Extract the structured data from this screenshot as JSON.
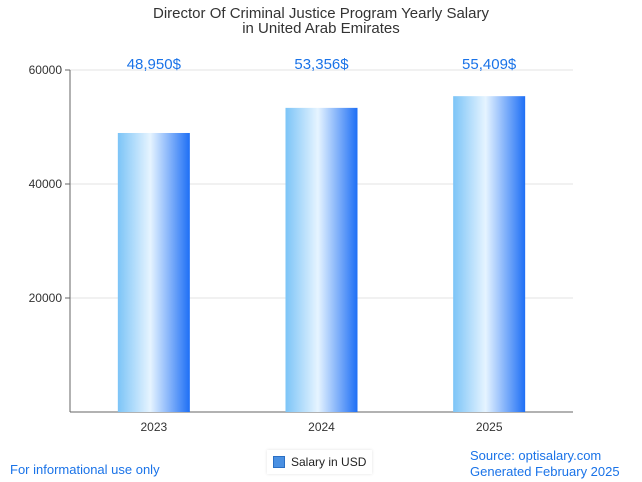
{
  "chart_data": {
    "type": "bar",
    "title_lines": [
      "Director Of Criminal Justice Program Yearly Salary",
      "in United Arab Emirates"
    ],
    "categories": [
      "2023",
      "2024",
      "2025"
    ],
    "values": [
      48950,
      53356,
      55409
    ],
    "value_labels": [
      "48,950$",
      "53,356$",
      "55,409$"
    ],
    "y_ticks": [
      20000,
      40000,
      60000
    ],
    "y_tick_labels": [
      "20000",
      "40000",
      "60000"
    ],
    "ylim": [
      0,
      60000
    ],
    "legend": "Salary in USD",
    "legend_position": "bottom-center",
    "grid": true,
    "colors": {
      "bar_light": "#e6f4ff",
      "bar_mid": "#7cc4f7",
      "bar_dark": "#1e6ff5",
      "label": "#1a73e8"
    }
  },
  "footer": {
    "left": "For informational use only",
    "source": "Source: optisalary.com",
    "generated": "Generated February 2025"
  }
}
